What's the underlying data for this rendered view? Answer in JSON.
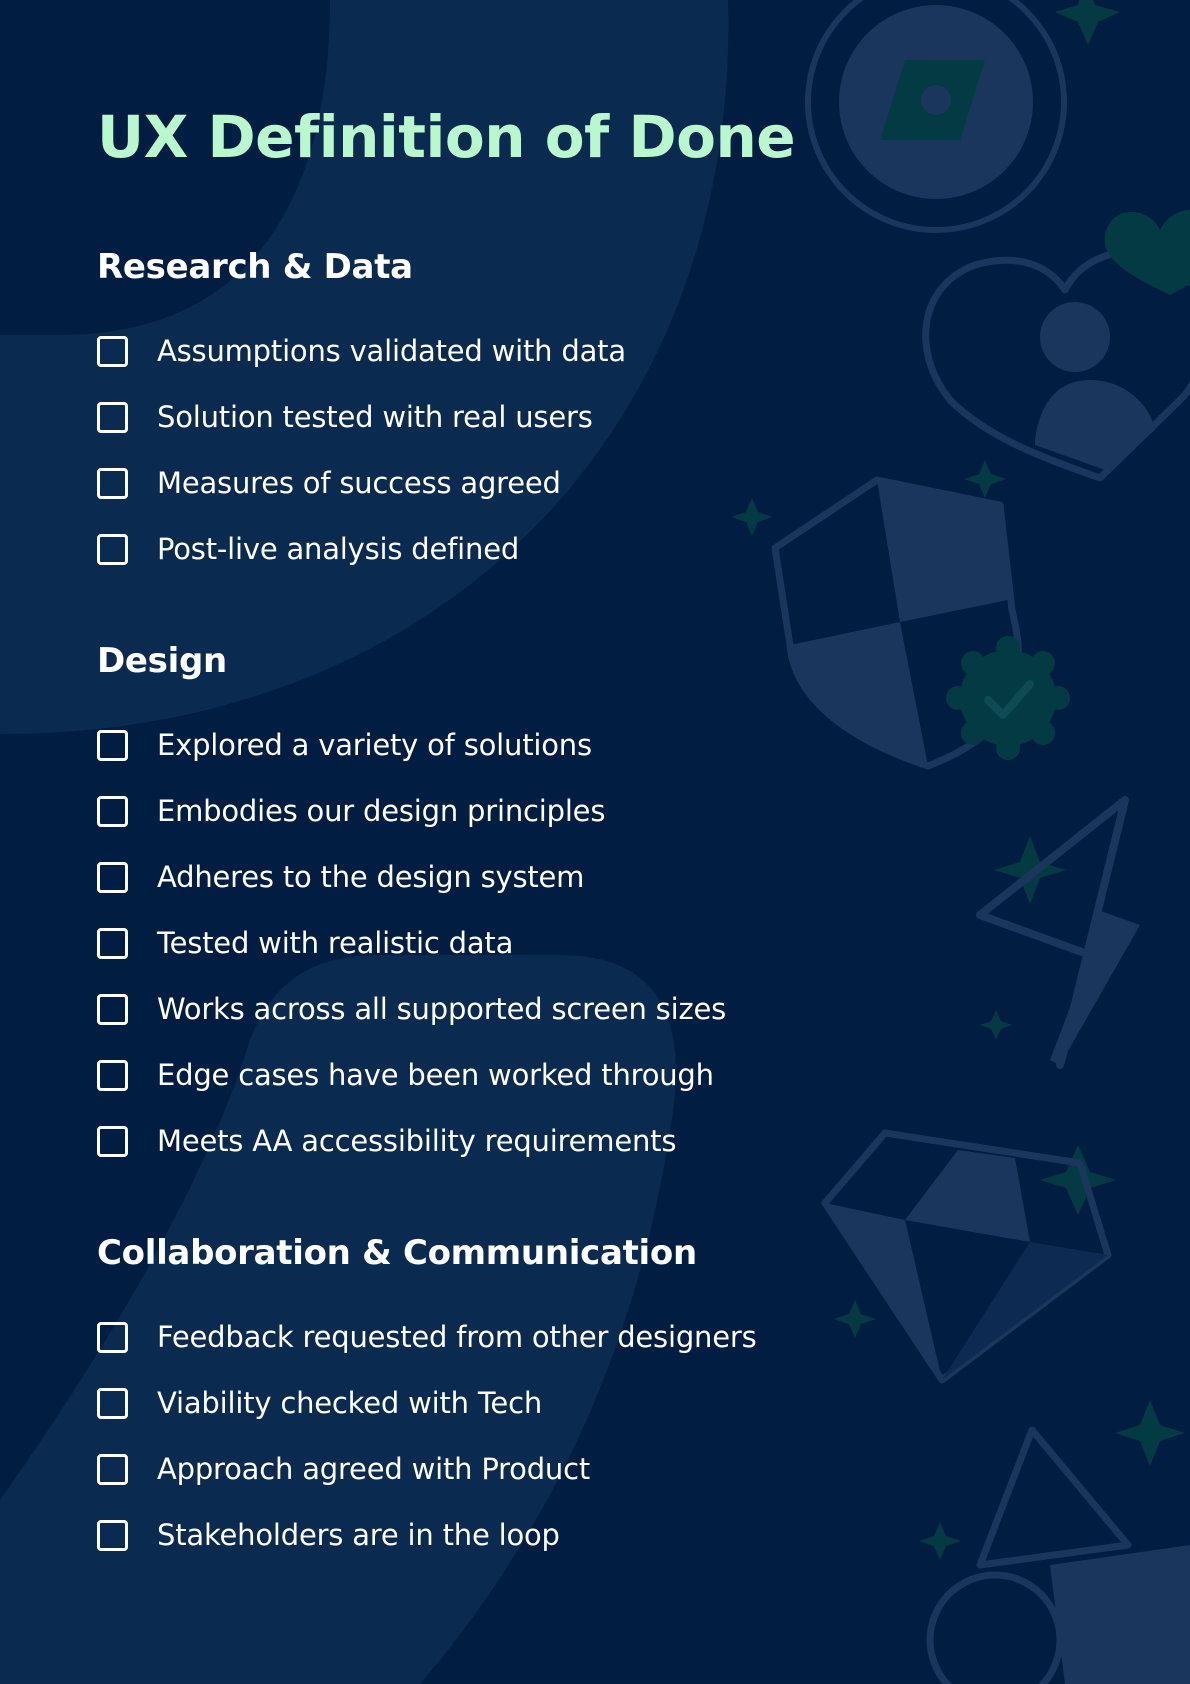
{
  "document": {
    "title": "UX Definition of Done"
  },
  "sections": [
    {
      "title": "Research & Data",
      "items": [
        "Assumptions validated with data",
        "Solution tested with real users",
        "Measures of success agreed",
        "Post-live analysis defined"
      ]
    },
    {
      "title": "Design",
      "items": [
        "Explored a variety of solutions",
        "Embodies our design principles",
        "Adheres to the design system",
        "Tested with realistic data",
        "Works across all supported screen sizes",
        "Edge cases have been worked through",
        "Meets AA accessibility requirements"
      ]
    },
    {
      "title": "Collaboration & Communication",
      "items": [
        "Feedback requested from other designers",
        "Viability checked with Tech",
        "Approach agreed with Product",
        "Stakeholders are in the loop"
      ]
    }
  ],
  "colors": {
    "background": "#021d42",
    "title": "#b9f7cd",
    "text": "#ffffff",
    "decor_light": "#1b365c",
    "decor_accent": "#043a44"
  },
  "icons": [
    "coin-icon",
    "heart-user-icon",
    "shield-icon",
    "verified-badge-icon",
    "paper-plane-icon",
    "gem-icon",
    "shapes-icon",
    "sparkle-icon"
  ]
}
